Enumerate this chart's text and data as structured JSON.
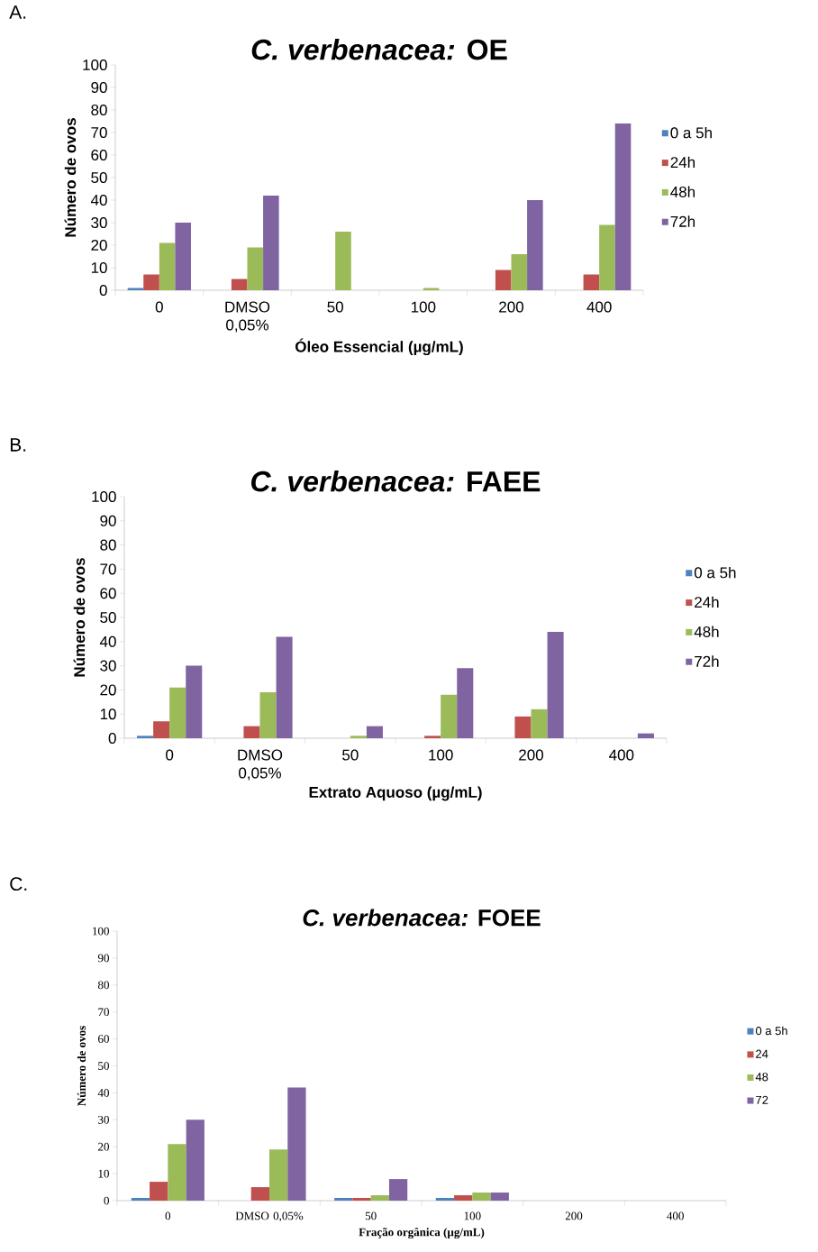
{
  "chart_data": [
    {
      "type": "bar",
      "title": "*C. verbenacea:* OE",
      "xlabel": "Óleo Essencial (µg/mL)",
      "ylabel": "Número de ovos",
      "annotations": [
        "A."
      ],
      "categories": [
        "0",
        "DMSO 0,05%",
        "50",
        "100",
        "200",
        "400"
      ],
      "series": [
        {
          "name": "0 a 5h",
          "color": "#4f81bd",
          "values": [
            1,
            0,
            0,
            0,
            0,
            0
          ]
        },
        {
          "name": "24h",
          "color": "#c0504d",
          "values": [
            7,
            5,
            0,
            0,
            9,
            7
          ]
        },
        {
          "name": "48h",
          "color": "#9bbb59",
          "values": [
            21,
            19,
            26,
            1,
            16,
            29
          ]
        },
        {
          "name": "72h",
          "color": "#8064a2",
          "values": [
            30,
            42,
            0,
            0,
            40,
            74
          ]
        }
      ],
      "ylim": [
        0,
        100
      ],
      "yticks": [
        0,
        10,
        20,
        30,
        40,
        50,
        60,
        70,
        80,
        90,
        100
      ],
      "legend": "right"
    },
    {
      "type": "bar",
      "title": "*C. verbenacea:* FAEE",
      "xlabel": "Extrato Aquoso (µg/mL)",
      "ylabel": "Número de ovos",
      "annotations": [
        "B."
      ],
      "categories": [
        "0",
        "DMSO 0,05%",
        "50",
        "100",
        "200",
        "400"
      ],
      "series": [
        {
          "name": "0 a 5h",
          "color": "#4f81bd",
          "values": [
            1,
            0,
            0,
            0,
            0,
            0
          ]
        },
        {
          "name": "24h",
          "color": "#c0504d",
          "values": [
            7,
            5,
            0,
            1,
            9,
            0
          ]
        },
        {
          "name": "48h",
          "color": "#9bbb59",
          "values": [
            21,
            19,
            1,
            18,
            12,
            0
          ]
        },
        {
          "name": "72h",
          "color": "#8064a2",
          "values": [
            30,
            42,
            5,
            29,
            44,
            2
          ]
        }
      ],
      "ylim": [
        0,
        100
      ],
      "yticks": [
        0,
        10,
        20,
        30,
        40,
        50,
        60,
        70,
        80,
        90,
        100
      ],
      "legend": "right"
    },
    {
      "type": "bar",
      "title": "*C. verbenacea:* FOEE",
      "xlabel": "Fração orgânica (µg/mL)",
      "ylabel": "Número de ovos",
      "annotations": [
        "C."
      ],
      "categories": [
        "0",
        "DMSO 0,05%",
        "50",
        "100",
        "200",
        "400"
      ],
      "series": [
        {
          "name": "0 a 5h",
          "color": "#4f81bd",
          "values": [
            1,
            0,
            1,
            1,
            0,
            0
          ]
        },
        {
          "name": "24",
          "color": "#c0504d",
          "values": [
            7,
            5,
            1,
            2,
            0,
            0
          ]
        },
        {
          "name": "48",
          "color": "#9bbb59",
          "values": [
            21,
            19,
            2,
            3,
            0,
            0
          ]
        },
        {
          "name": "72",
          "color": "#8064a2",
          "values": [
            30,
            42,
            8,
            3,
            0,
            0
          ]
        }
      ],
      "ylim": [
        0,
        100
      ],
      "yticks": [
        0,
        10,
        20,
        30,
        40,
        50,
        60,
        70,
        80,
        90,
        100
      ],
      "legend": "right"
    }
  ]
}
